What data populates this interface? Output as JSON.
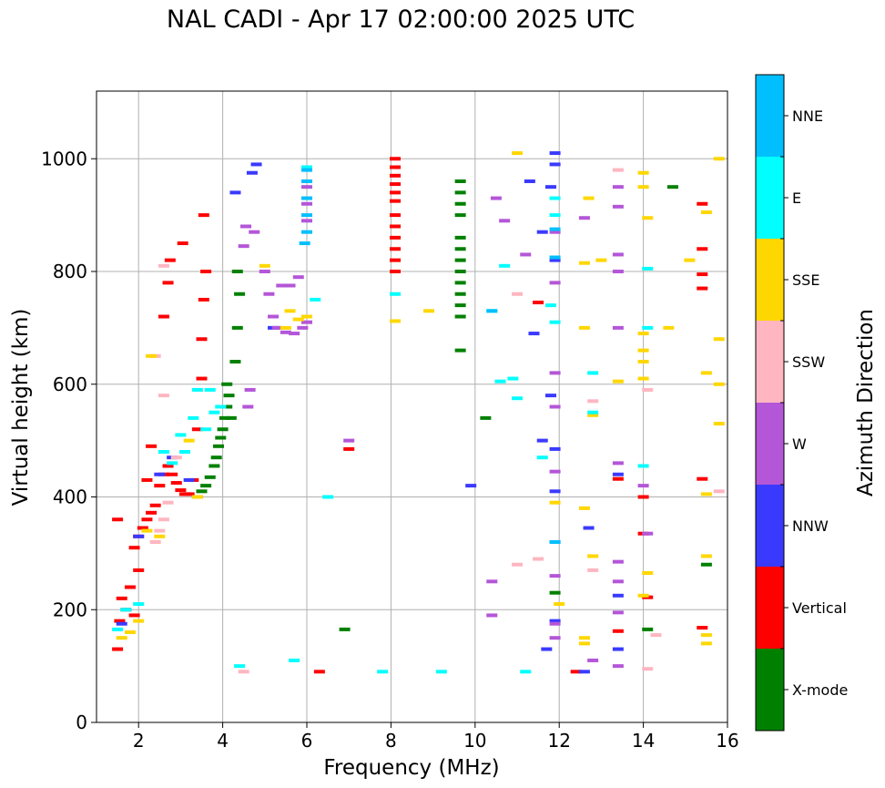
{
  "chart_data": {
    "type": "scatter",
    "title": "NAL CADI - Apr 17 02:00:00 2025 UTC",
    "xlabel": "Frequency (MHz)",
    "ylabel": "Virtual height (km)",
    "xlim": [
      1,
      16
    ],
    "ylim": [
      0,
      1120
    ],
    "xticks": [
      "2",
      "4",
      "6",
      "8",
      "10",
      "12",
      "14",
      "16"
    ],
    "yticks": [
      "0",
      "200",
      "400",
      "600",
      "800",
      "1000"
    ],
    "grid": true,
    "colorbar_label": "Azimuth Direction",
    "categories": [
      {
        "name": "X-mode",
        "color": "#008000"
      },
      {
        "name": "Vertical",
        "color": "#ff0000"
      },
      {
        "name": "NNW",
        "color": "#3a3aff"
      },
      {
        "name": "W",
        "color": "#b456d8"
      },
      {
        "name": "SSW",
        "color": "#ffb6c1"
      },
      {
        "name": "SSE",
        "color": "#ffd700"
      },
      {
        "name": "E",
        "color": "#00ffff"
      },
      {
        "name": "NNE",
        "color": "#00bfff"
      }
    ],
    "series": [
      {
        "name": "Vertical",
        "points": [
          [
            1.5,
            130
          ],
          [
            1.5,
            360
          ],
          [
            1.55,
            180
          ],
          [
            1.6,
            220
          ],
          [
            1.7,
            200
          ],
          [
            1.8,
            240
          ],
          [
            1.9,
            190
          ],
          [
            2.0,
            270
          ],
          [
            1.9,
            310
          ],
          [
            2.0,
            330
          ],
          [
            2.1,
            345
          ],
          [
            2.2,
            360
          ],
          [
            2.3,
            372
          ],
          [
            2.4,
            385
          ],
          [
            2.5,
            420
          ],
          [
            2.6,
            440
          ],
          [
            2.7,
            455
          ],
          [
            2.8,
            440
          ],
          [
            2.9,
            425
          ],
          [
            3.0,
            412
          ],
          [
            3.1,
            405
          ],
          [
            3.2,
            405
          ],
          [
            3.3,
            430
          ],
          [
            3.4,
            520
          ],
          [
            3.5,
            610
          ],
          [
            3.5,
            680
          ],
          [
            3.55,
            750
          ],
          [
            3.6,
            800
          ],
          [
            3.55,
            900
          ],
          [
            3.05,
            850
          ],
          [
            2.6,
            720
          ],
          [
            2.7,
            780
          ],
          [
            2.75,
            820
          ],
          [
            2.3,
            490
          ],
          [
            2.2,
            430
          ],
          [
            8.1,
            1000
          ],
          [
            8.1,
            985
          ],
          [
            8.1,
            970
          ],
          [
            8.1,
            955
          ],
          [
            8.1,
            940
          ],
          [
            8.1,
            925
          ],
          [
            8.1,
            900
          ],
          [
            8.1,
            880
          ],
          [
            8.1,
            860
          ],
          [
            8.1,
            840
          ],
          [
            8.1,
            820
          ],
          [
            8.1,
            800
          ],
          [
            7.0,
            485
          ],
          [
            6.3,
            90
          ],
          [
            12.4,
            90
          ],
          [
            15.4,
            920
          ],
          [
            15.4,
            840
          ],
          [
            15.4,
            795
          ],
          [
            15.4,
            770
          ],
          [
            15.4,
            432
          ],
          [
            15.4,
            168
          ],
          [
            13.4,
            432
          ],
          [
            13.4,
            162
          ],
          [
            14.1,
            222
          ],
          [
            14.0,
            400
          ],
          [
            14.0,
            335
          ],
          [
            11.5,
            745
          ]
        ]
      },
      {
        "name": "X-mode",
        "points": [
          [
            3.4,
            400
          ],
          [
            3.5,
            410
          ],
          [
            3.6,
            420
          ],
          [
            3.7,
            435
          ],
          [
            3.8,
            455
          ],
          [
            3.85,
            470
          ],
          [
            3.9,
            490
          ],
          [
            3.95,
            505
          ],
          [
            4.0,
            520
          ],
          [
            4.05,
            540
          ],
          [
            4.1,
            560
          ],
          [
            4.15,
            580
          ],
          [
            4.1,
            600
          ],
          [
            4.2,
            540
          ],
          [
            4.3,
            640
          ],
          [
            4.35,
            700
          ],
          [
            4.4,
            760
          ],
          [
            4.35,
            800
          ],
          [
            9.65,
            960
          ],
          [
            9.65,
            940
          ],
          [
            9.65,
            920
          ],
          [
            9.65,
            900
          ],
          [
            9.65,
            860
          ],
          [
            9.65,
            840
          ],
          [
            9.65,
            820
          ],
          [
            9.65,
            800
          ],
          [
            9.65,
            780
          ],
          [
            9.65,
            760
          ],
          [
            9.65,
            740
          ],
          [
            9.65,
            720
          ],
          [
            10.25,
            540
          ],
          [
            9.65,
            660
          ],
          [
            6.9,
            165
          ],
          [
            11.9,
            230
          ],
          [
            14.1,
            165
          ],
          [
            14.7,
            950
          ],
          [
            15.5,
            280
          ]
        ]
      },
      {
        "name": "NNW",
        "points": [
          [
            1.6,
            175
          ],
          [
            2.0,
            330
          ],
          [
            2.5,
            440
          ],
          [
            2.8,
            470
          ],
          [
            3.2,
            430
          ],
          [
            4.3,
            940
          ],
          [
            4.7,
            975
          ],
          [
            5.2,
            700
          ],
          [
            4.8,
            990
          ],
          [
            11.9,
            1010
          ],
          [
            11.9,
            990
          ],
          [
            11.8,
            950
          ],
          [
            11.6,
            870
          ],
          [
            11.9,
            820
          ],
          [
            11.4,
            690
          ],
          [
            11.8,
            580
          ],
          [
            11.9,
            485
          ],
          [
            11.9,
            410
          ],
          [
            11.6,
            500
          ],
          [
            11.9,
            320
          ],
          [
            11.9,
            180
          ],
          [
            11.7,
            130
          ],
          [
            12.7,
            345
          ],
          [
            12.6,
            90
          ],
          [
            13.4,
            225
          ],
          [
            13.4,
            440
          ],
          [
            13.4,
            130
          ],
          [
            11.3,
            960
          ],
          [
            9.9,
            420
          ]
        ]
      },
      {
        "name": "W",
        "points": [
          [
            4.6,
            560
          ],
          [
            4.65,
            590
          ],
          [
            4.75,
            870
          ],
          [
            5.0,
            800
          ],
          [
            5.1,
            760
          ],
          [
            5.2,
            720
          ],
          [
            5.3,
            700
          ],
          [
            5.5,
            692
          ],
          [
            5.7,
            690
          ],
          [
            5.9,
            700
          ],
          [
            6.0,
            710
          ],
          [
            5.6,
            775
          ],
          [
            5.8,
            790
          ],
          [
            5.4,
            775
          ],
          [
            4.5,
            845
          ],
          [
            4.55,
            880
          ],
          [
            6.0,
            985
          ],
          [
            6.0,
            950
          ],
          [
            6.0,
            920
          ],
          [
            6.0,
            890
          ],
          [
            7.0,
            500
          ],
          [
            10.5,
            930
          ],
          [
            10.7,
            890
          ],
          [
            11.2,
            830
          ],
          [
            11.9,
            870
          ],
          [
            11.9,
            780
          ],
          [
            11.9,
            620
          ],
          [
            11.9,
            560
          ],
          [
            11.9,
            445
          ],
          [
            11.9,
            260
          ],
          [
            11.9,
            175
          ],
          [
            11.9,
            150
          ],
          [
            12.6,
            895
          ],
          [
            13.4,
            950
          ],
          [
            13.4,
            915
          ],
          [
            13.4,
            800
          ],
          [
            13.4,
            830
          ],
          [
            13.4,
            700
          ],
          [
            13.4,
            460
          ],
          [
            13.4,
            285
          ],
          [
            13.4,
            250
          ],
          [
            13.4,
            195
          ],
          [
            13.4,
            100
          ],
          [
            14.0,
            420
          ],
          [
            14.1,
            335
          ],
          [
            10.4,
            250
          ],
          [
            10.4,
            190
          ],
          [
            12.8,
            110
          ]
        ]
      },
      {
        "name": "SSW",
        "points": [
          [
            2.4,
            320
          ],
          [
            2.5,
            340
          ],
          [
            2.6,
            360
          ],
          [
            2.7,
            390
          ],
          [
            2.9,
            470
          ],
          [
            2.6,
            580
          ],
          [
            2.4,
            650
          ],
          [
            2.6,
            810
          ],
          [
            4.5,
            90
          ],
          [
            11.0,
            760
          ],
          [
            11.0,
            280
          ],
          [
            11.5,
            290
          ],
          [
            12.8,
            570
          ],
          [
            12.8,
            270
          ],
          [
            13.4,
            980
          ],
          [
            14.1,
            590
          ],
          [
            14.1,
            95
          ],
          [
            14.3,
            155
          ],
          [
            15.8,
            410
          ]
        ]
      },
      {
        "name": "SSE",
        "points": [
          [
            1.6,
            150
          ],
          [
            1.8,
            160
          ],
          [
            2.0,
            180
          ],
          [
            2.3,
            650
          ],
          [
            2.2,
            340
          ],
          [
            2.5,
            330
          ],
          [
            3.2,
            500
          ],
          [
            3.4,
            400
          ],
          [
            5.0,
            810
          ],
          [
            5.5,
            700
          ],
          [
            5.6,
            730
          ],
          [
            5.8,
            715
          ],
          [
            6.0,
            720
          ],
          [
            8.1,
            712
          ],
          [
            8.9,
            730
          ],
          [
            11.0,
            1010
          ],
          [
            11.9,
            390
          ],
          [
            12.0,
            210
          ],
          [
            12.6,
            700
          ],
          [
            12.6,
            815
          ],
          [
            12.7,
            930
          ],
          [
            12.8,
            545
          ],
          [
            12.8,
            295
          ],
          [
            12.6,
            140
          ],
          [
            13.4,
            605
          ],
          [
            14.0,
            975
          ],
          [
            14.0,
            950
          ],
          [
            14.1,
            895
          ],
          [
            14.0,
            690
          ],
          [
            14.0,
            660
          ],
          [
            14.0,
            640
          ],
          [
            14.0,
            610
          ],
          [
            14.1,
            265
          ],
          [
            14.0,
            225
          ],
          [
            14.6,
            700
          ],
          [
            15.1,
            820
          ],
          [
            15.5,
            905
          ],
          [
            15.5,
            620
          ],
          [
            15.5,
            405
          ],
          [
            15.5,
            295
          ],
          [
            15.5,
            155
          ],
          [
            15.5,
            140
          ],
          [
            15.8,
            1000
          ],
          [
            15.8,
            680
          ],
          [
            15.8,
            600
          ],
          [
            15.8,
            530
          ],
          [
            12.6,
            380
          ],
          [
            12.6,
            150
          ],
          [
            13.0,
            820
          ]
        ]
      },
      {
        "name": "E",
        "points": [
          [
            1.5,
            165
          ],
          [
            1.7,
            200
          ],
          [
            2.0,
            210
          ],
          [
            2.6,
            480
          ],
          [
            2.8,
            460
          ],
          [
            3.0,
            510
          ],
          [
            3.1,
            480
          ],
          [
            3.3,
            540
          ],
          [
            3.4,
            590
          ],
          [
            3.6,
            520
          ],
          [
            3.8,
            550
          ],
          [
            3.95,
            560
          ],
          [
            3.7,
            590
          ],
          [
            6.2,
            750
          ],
          [
            6.5,
            400
          ],
          [
            5.7,
            110
          ],
          [
            4.4,
            100
          ],
          [
            6.0,
            985
          ],
          [
            8.1,
            760
          ],
          [
            7.8,
            90
          ],
          [
            9.2,
            90
          ],
          [
            10.7,
            810
          ],
          [
            11.0,
            575
          ],
          [
            11.2,
            90
          ],
          [
            11.8,
            740
          ],
          [
            11.9,
            930
          ],
          [
            11.9,
            900
          ],
          [
            11.9,
            710
          ],
          [
            12.8,
            620
          ],
          [
            12.8,
            550
          ],
          [
            14.1,
            805
          ],
          [
            14.1,
            700
          ],
          [
            14.0,
            455
          ],
          [
            10.4,
            730
          ],
          [
            11.6,
            470
          ],
          [
            10.6,
            605
          ],
          [
            10.9,
            610
          ]
        ]
      },
      {
        "name": "NNE",
        "points": [
          [
            6.0,
            980
          ],
          [
            6.0,
            960
          ],
          [
            6.0,
            930
          ],
          [
            6.0,
            900
          ],
          [
            6.0,
            870
          ],
          [
            5.95,
            850
          ],
          [
            10.4,
            730
          ],
          [
            11.9,
            825
          ],
          [
            11.9,
            320
          ],
          [
            11.9,
            875
          ]
        ]
      }
    ]
  }
}
